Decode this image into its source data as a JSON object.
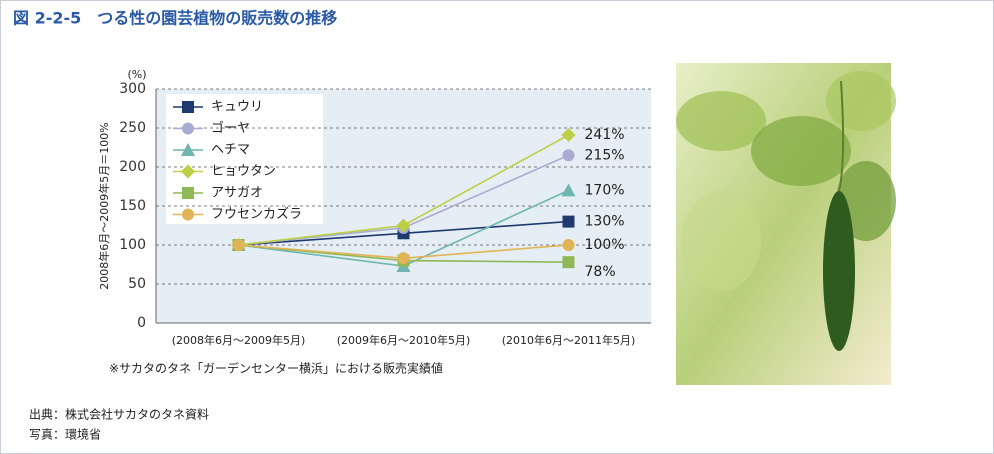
{
  "chart_data": {
    "type": "line",
    "title": "図 2-2-5　つる性の園芸植物の販売数の推移",
    "y_unit": "(%)",
    "y_label": "2008年6月～2009年5月＝100%",
    "categories": [
      "(2008年6月～2009年5月)",
      "(2009年6月～2010年5月)",
      "(2010年6月～2011年5月)"
    ],
    "series": [
      {
        "name": "キュウリ",
        "color": "#1f3a6e",
        "marker": "square",
        "values": [
          100,
          115,
          130
        ],
        "value_labels": [
          null,
          null,
          "130%"
        ]
      },
      {
        "name": "ゴーヤ",
        "color": "#a9acd0",
        "marker": "circle",
        "values": [
          100,
          122,
          215
        ],
        "value_labels": [
          null,
          null,
          "215%"
        ]
      },
      {
        "name": "ヘチマ",
        "color": "#6fb5b0",
        "marker": "triangle",
        "values": [
          100,
          73,
          170
        ],
        "value_labels": [
          null,
          null,
          "170%"
        ]
      },
      {
        "name": "ヒョウタン",
        "color": "#bccf45",
        "marker": "diamond",
        "values": [
          100,
          125,
          241
        ],
        "value_labels": [
          null,
          null,
          "241%"
        ]
      },
      {
        "name": "アサガオ",
        "color": "#8fb857",
        "marker": "square",
        "values": [
          100,
          80,
          78
        ],
        "value_labels": [
          null,
          null,
          "78%"
        ]
      },
      {
        "name": "フウセンカズラ",
        "color": "#e1b455",
        "marker": "circle",
        "values": [
          100,
          83,
          100
        ],
        "value_labels": [
          null,
          null,
          "100%"
        ]
      }
    ],
    "ylim": [
      0,
      300
    ],
    "yticks": [
      0,
      50,
      100,
      150,
      200,
      250,
      300
    ],
    "grid": true,
    "footnote": "※サカタのタネ「ガーデンセンター横浜」における販売実績値",
    "source": "出典：株式会社サカタのタネ資料",
    "photo_credit": "写真：環境省"
  }
}
